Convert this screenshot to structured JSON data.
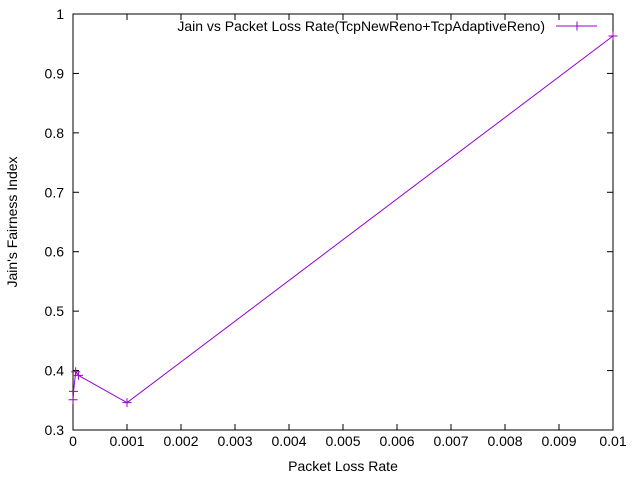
{
  "chart_data": {
    "type": "line",
    "xlabel": "Packet Loss Rate",
    "ylabel": "Jain's Fairness Index",
    "xlim": [
      0,
      0.01
    ],
    "ylim": [
      0.3,
      1
    ],
    "xticks": [
      0,
      0.001,
      0.002,
      0.003,
      0.004,
      0.005,
      0.006,
      0.007,
      0.008,
      0.009,
      0.01
    ],
    "xtick_labels": [
      "0",
      "0.001",
      "0.002",
      "0.003",
      "0.004",
      "0.005",
      "0.006",
      "0.007",
      "0.008",
      "0.009",
      "0.01"
    ],
    "yticks": [
      0.3,
      0.4,
      0.5,
      0.6,
      0.7,
      0.8,
      0.9,
      1
    ],
    "ytick_labels": [
      "0.3",
      "0.4",
      "0.5",
      "0.6",
      "0.7",
      "0.8",
      "0.9",
      "1"
    ],
    "grid": false,
    "legend_position": "top-right",
    "series": [
      {
        "name": "Jain vs Packet Loss Rate(TcpNewReno+TcpAdaptiveReno)",
        "color": "#9400d3",
        "marker": "plus",
        "x": [
          1e-06,
          1e-05,
          5e-05,
          0.0001,
          0.001,
          0.01
        ],
        "y": [
          0.351,
          0.365,
          0.398,
          0.392,
          0.346,
          0.963
        ]
      }
    ]
  }
}
